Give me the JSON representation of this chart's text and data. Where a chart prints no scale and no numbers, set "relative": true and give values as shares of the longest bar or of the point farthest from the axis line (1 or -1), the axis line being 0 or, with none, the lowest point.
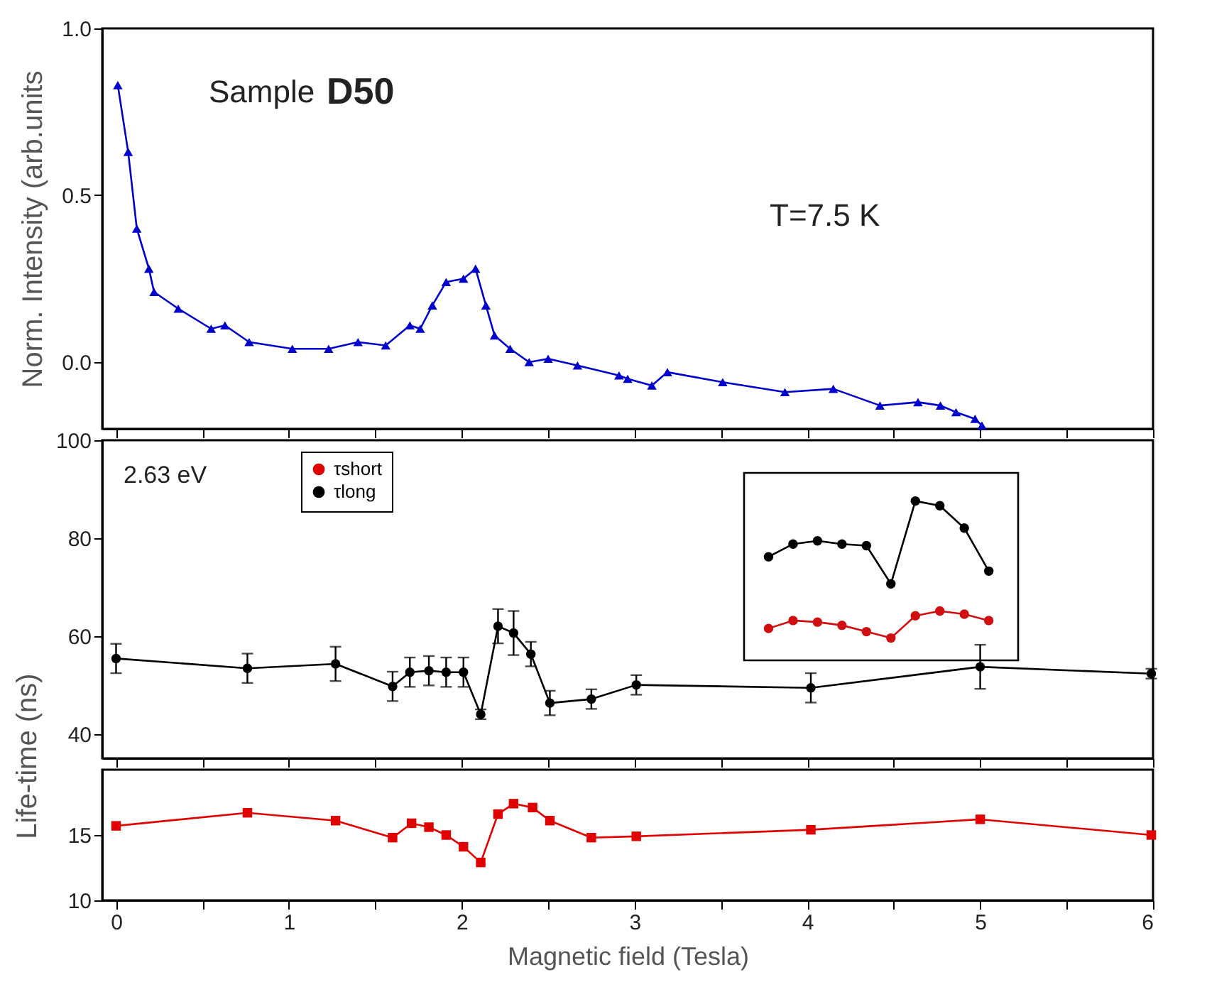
{
  "chart_data": [
    {
      "type": "line",
      "ylabel": "Norm. Intensity (arb.units",
      "xlim": [
        -0.08,
        6.0
      ],
      "xticks": [
        0,
        {
          "value": 0.5,
          "label": null
        },
        1,
        {
          "value": 1.5,
          "label": null
        },
        2,
        {
          "value": 2.5,
          "label": null
        },
        3,
        {
          "value": 3.5,
          "label": null
        },
        4,
        {
          "value": 4.5,
          "label": null
        },
        5,
        {
          "value": 5.5,
          "label": null
        },
        6
      ],
      "ylim": [
        -0.2,
        1.0
      ],
      "yticks": [
        {
          "value": 0,
          "label": "0.0"
        },
        {
          "value": 0.5,
          "label": "0.5"
        },
        {
          "value": 1,
          "label": "1.0"
        }
      ],
      "tick_labels": "y",
      "marker": "triangle",
      "annotations": [
        "Sample",
        "D50",
        "T=7.5 K"
      ],
      "series": [
        {
          "color": "#0000cc",
          "x": [
            0.01,
            0.07,
            0.12,
            0.19,
            0.22,
            0.36,
            0.55,
            0.63,
            0.77,
            1.02,
            1.23,
            1.4,
            1.56,
            1.7,
            1.76,
            1.83,
            1.91,
            2.01,
            2.08,
            2.14,
            2.19,
            2.28,
            2.39,
            2.5,
            2.67,
            2.91,
            2.96,
            3.1,
            3.19,
            3.51,
            3.87,
            4.15,
            4.42,
            4.64,
            4.77,
            4.86,
            4.97,
            5.01
          ],
          "values": [
            0.83,
            0.63,
            0.4,
            0.28,
            0.21,
            0.16,
            0.1,
            0.11,
            0.06,
            0.04,
            0.04,
            0.06,
            0.05,
            0.11,
            0.1,
            0.17,
            0.24,
            0.25,
            0.28,
            0.17,
            0.08,
            0.04,
            0.0,
            0.01,
            -0.01,
            -0.04,
            -0.05,
            -0.07,
            -0.03,
            -0.06,
            -0.09,
            -0.08,
            -0.13,
            -0.12,
            -0.13,
            -0.15,
            -0.17,
            -0.19
          ]
        }
      ]
    },
    {
      "type": "line",
      "ylabel": "Life-time (ns)",
      "xlim": [
        -0.08,
        6.0
      ],
      "xticks": [
        0,
        {
          "value": 0.5,
          "label": null
        },
        1,
        {
          "value": 1.5,
          "label": null
        },
        2,
        {
          "value": 2.5,
          "label": null
        },
        3,
        {
          "value": 3.5,
          "label": null
        },
        4,
        {
          "value": 4.5,
          "label": null
        },
        5,
        {
          "value": 5.5,
          "label": null
        },
        6
      ],
      "ylim": [
        35,
        100
      ],
      "yticks": [
        40,
        60,
        80,
        100
      ],
      "tick_labels": "y",
      "marker": "circle",
      "legend": "top left",
      "annotations": [
        "2.63 eV"
      ],
      "series": [
        {
          "name": "τlong",
          "color": "#000000",
          "x": [
            0,
            0.76,
            1.27,
            1.6,
            1.7,
            1.81,
            1.91,
            2.01,
            2.11,
            2.21,
            2.3,
            2.4,
            2.51,
            2.75,
            3.01,
            4.02,
            5.0,
            5.99
          ],
          "values": [
            55.4,
            53.4,
            54.3,
            49.7,
            52.6,
            52.9,
            52.6,
            52.6,
            44,
            62,
            60.6,
            56.3,
            46.3,
            47.1,
            50,
            49.4,
            53.7,
            52.3
          ],
          "errors": [
            3,
            3,
            3.5,
            3,
            3,
            3,
            3,
            3,
            1,
            3.5,
            4.5,
            2.5,
            2.5,
            2,
            2,
            3,
            4.5,
            1
          ]
        }
      ]
    },
    {
      "type": "line",
      "xlabel": "Magnetic field (Tesla)",
      "xlim": [
        -0.08,
        6.0
      ],
      "xticks": [
        0,
        {
          "value": 0.5,
          "label": null
        },
        1,
        {
          "value": 1.5,
          "label": null
        },
        2,
        {
          "value": 2.5,
          "label": null
        },
        3,
        {
          "value": 3.5,
          "label": null
        },
        4,
        {
          "value": 4.5,
          "label": null
        },
        5,
        {
          "value": 5.5,
          "label": null
        },
        6
      ],
      "ylim": [
        10,
        20
      ],
      "yticks": [
        10,
        15
      ],
      "marker": "square",
      "series": [
        {
          "name": "τshort",
          "color": "#e00000",
          "x": [
            0,
            0.76,
            1.27,
            1.6,
            1.71,
            1.81,
            1.91,
            2.01,
            2.11,
            2.21,
            2.3,
            2.41,
            2.51,
            2.75,
            3.01,
            4.02,
            5.0,
            5.99
          ],
          "values": [
            15.7,
            16.7,
            16.1,
            14.8,
            15.9,
            15.6,
            15.0,
            14.1,
            12.9,
            16.6,
            17.4,
            17.1,
            16.1,
            14.8,
            14.9,
            15.4,
            16.2,
            15.0
          ]
        }
      ]
    },
    {
      "type": "line",
      "relative": true,
      "marker": "circle",
      "categories": [
        null,
        null,
        null,
        null,
        null,
        null,
        null,
        null,
        null,
        null
      ],
      "series": [
        {
          "color": "#000000",
          "values": [
            0.65,
            0.73,
            0.75,
            0.73,
            0.72,
            0.48,
            1.0,
            0.97,
            0.83,
            0.56
          ]
        },
        {
          "color": "#d01010",
          "values": [
            0.2,
            0.25,
            0.24,
            0.22,
            0.18,
            0.14,
            0.28,
            0.31,
            0.29,
            0.25
          ]
        }
      ]
    }
  ]
}
